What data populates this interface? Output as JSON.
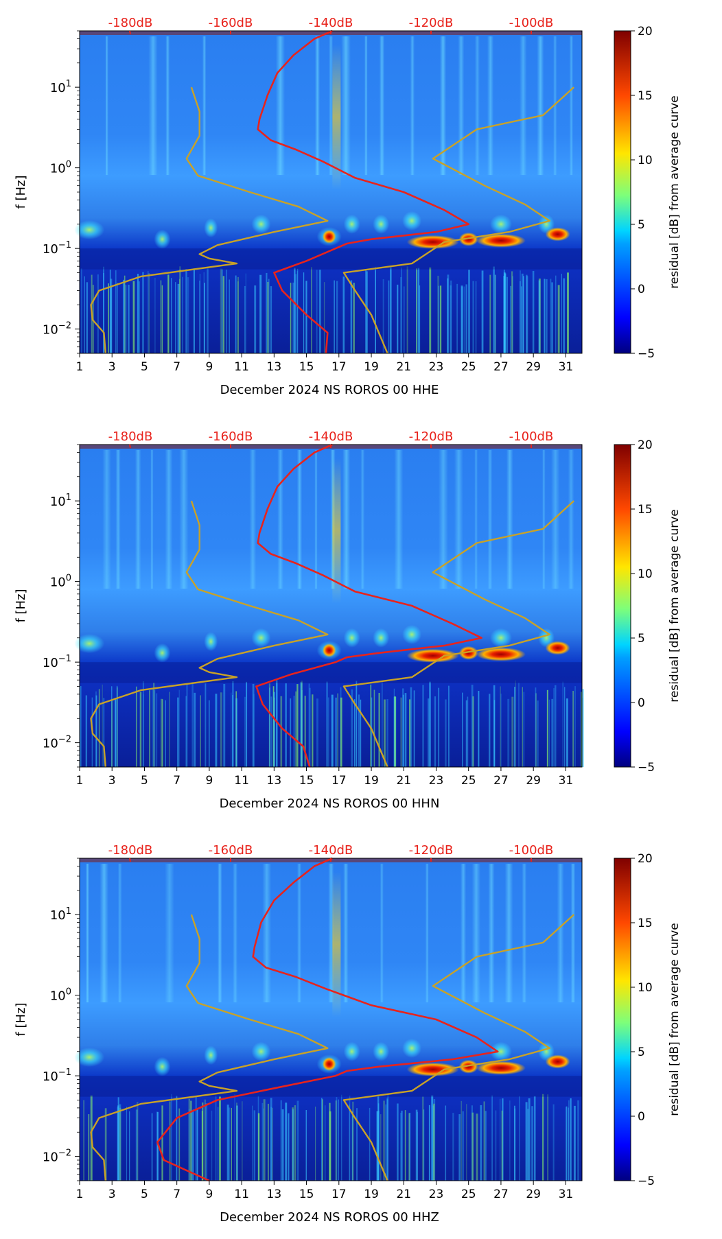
{
  "chart_data": [
    {
      "type": "heatmap",
      "panel": "HHE",
      "xlabel": "December 2024 NS ROROS 00 HHE",
      "ylabel": "f [Hz]",
      "xlim": [
        1,
        32
      ],
      "ylim_log": [
        0.005,
        50
      ],
      "x_ticks": [
        "1",
        "3",
        "5",
        "7",
        "9",
        "11",
        "13",
        "15",
        "17",
        "19",
        "21",
        "23",
        "25",
        "27",
        "29",
        "31"
      ],
      "y_ticks": [
        "10^-2",
        "10^-1",
        "10^0",
        "10^1"
      ],
      "top_axis_labels": [
        "-180dB",
        "-160dB",
        "-140dB",
        "-120dB",
        "-100dB"
      ],
      "colorbar": {
        "label": "residual [dB] from average curve",
        "min": -5,
        "max": 20,
        "ticks": [
          "20",
          "15",
          "10",
          "5",
          "0",
          "−5"
        ]
      },
      "series": [
        {
          "name": "average PSD curve",
          "color": "#e8231c",
          "points": [
            [
              16.6,
              50
            ],
            [
              15.5,
              40
            ],
            [
              14.2,
              25
            ],
            [
              13.2,
              15
            ],
            [
              12.6,
              8
            ],
            [
              12.1,
              4
            ],
            [
              12.0,
              3
            ],
            [
              12.8,
              2.2
            ],
            [
              14.3,
              1.7
            ],
            [
              16.0,
              1.2
            ],
            [
              18.0,
              0.75
            ],
            [
              21.0,
              0.5
            ],
            [
              23.5,
              0.3
            ],
            [
              25.0,
              0.2
            ],
            [
              23.0,
              0.16
            ],
            [
              19.0,
              0.13
            ],
            [
              17.5,
              0.115
            ],
            [
              16.8,
              0.1
            ],
            [
              15.0,
              0.07
            ],
            [
              13.0,
              0.05
            ],
            [
              13.5,
              0.03
            ],
            [
              15.0,
              0.015
            ],
            [
              16.3,
              0.009
            ],
            [
              16.2,
              0.005
            ]
          ]
        },
        {
          "name": "noise model",
          "color": "#c9a227",
          "points": [
            [
              7.9,
              10
            ],
            [
              8.4,
              5
            ],
            [
              8.4,
              2.5
            ],
            [
              7.6,
              1.3
            ],
            [
              8.3,
              0.8
            ],
            [
              11.5,
              0.5
            ],
            [
              14.5,
              0.33
            ],
            [
              16.3,
              0.22
            ],
            [
              13.0,
              0.16
            ],
            [
              9.5,
              0.11
            ],
            [
              8.4,
              0.085
            ],
            [
              9.0,
              0.075
            ],
            [
              10.7,
              0.065
            ],
            [
              4.8,
              0.045
            ],
            [
              2.2,
              0.03
            ],
            [
              1.7,
              0.02
            ],
            [
              1.8,
              0.013
            ],
            [
              2.5,
              0.009
            ],
            [
              2.6,
              0.005
            ]
          ]
        },
        {
          "name": "noise model",
          "color": "#c9a227",
          "points": [
            [
              31.5,
              10
            ],
            [
              29.6,
              4.5
            ],
            [
              25.5,
              3.0
            ],
            [
              22.8,
              1.3
            ],
            [
              26.0,
              0.6
            ],
            [
              28.5,
              0.35
            ],
            [
              30.0,
              0.22
            ],
            [
              27.5,
              0.16
            ],
            [
              23.5,
              0.12
            ],
            [
              21.5,
              0.065
            ],
            [
              17.3,
              0.05
            ],
            [
              18.0,
              0.03
            ],
            [
              19.0,
              0.015
            ],
            [
              20.0,
              0.005
            ]
          ]
        }
      ]
    },
    {
      "type": "heatmap",
      "panel": "HHN",
      "xlabel": "December 2024 NS ROROS 00 HHN",
      "ylabel": "f [Hz]",
      "xlim": [
        1,
        32
      ],
      "ylim_log": [
        0.005,
        50
      ],
      "x_ticks": [
        "1",
        "3",
        "5",
        "7",
        "9",
        "11",
        "13",
        "15",
        "17",
        "19",
        "21",
        "23",
        "25",
        "27",
        "29",
        "31"
      ],
      "y_ticks": [
        "10^-2",
        "10^-1",
        "10^0",
        "10^1"
      ],
      "top_axis_labels": [
        "-180dB",
        "-160dB",
        "-140dB",
        "-120dB",
        "-100dB"
      ],
      "colorbar": {
        "label": "residual [dB] from average curve",
        "min": -5,
        "max": 20,
        "ticks": [
          "20",
          "15",
          "10",
          "5",
          "0",
          "−5"
        ]
      },
      "series": [
        {
          "name": "average PSD curve",
          "color": "#e8231c",
          "points": [
            [
              16.6,
              50
            ],
            [
              15.5,
              40
            ],
            [
              14.2,
              25
            ],
            [
              13.2,
              15
            ],
            [
              12.6,
              8
            ],
            [
              12.1,
              4
            ],
            [
              12.0,
              3
            ],
            [
              12.8,
              2.2
            ],
            [
              14.3,
              1.7
            ],
            [
              16.0,
              1.2
            ],
            [
              18.0,
              0.75
            ],
            [
              21.5,
              0.5
            ],
            [
              24.0,
              0.3
            ],
            [
              25.8,
              0.2
            ],
            [
              23.5,
              0.16
            ],
            [
              19.5,
              0.13
            ],
            [
              17.5,
              0.115
            ],
            [
              16.8,
              0.1
            ],
            [
              14.0,
              0.07
            ],
            [
              11.9,
              0.05
            ],
            [
              12.3,
              0.03
            ],
            [
              13.5,
              0.015
            ],
            [
              14.8,
              0.009
            ],
            [
              15.2,
              0.005
            ]
          ]
        },
        {
          "name": "noise model",
          "color": "#c9a227",
          "points": [
            [
              7.9,
              10
            ],
            [
              8.4,
              5
            ],
            [
              8.4,
              2.5
            ],
            [
              7.6,
              1.3
            ],
            [
              8.3,
              0.8
            ],
            [
              11.5,
              0.5
            ],
            [
              14.5,
              0.33
            ],
            [
              16.3,
              0.22
            ],
            [
              13.0,
              0.16
            ],
            [
              9.5,
              0.11
            ],
            [
              8.4,
              0.085
            ],
            [
              9.0,
              0.075
            ],
            [
              10.7,
              0.065
            ],
            [
              4.8,
              0.045
            ],
            [
              2.2,
              0.03
            ],
            [
              1.7,
              0.02
            ],
            [
              1.8,
              0.013
            ],
            [
              2.5,
              0.009
            ],
            [
              2.6,
              0.005
            ]
          ]
        },
        {
          "name": "noise model",
          "color": "#c9a227",
          "points": [
            [
              31.5,
              10
            ],
            [
              29.6,
              4.5
            ],
            [
              25.5,
              3.0
            ],
            [
              22.8,
              1.3
            ],
            [
              26.0,
              0.6
            ],
            [
              28.5,
              0.35
            ],
            [
              30.0,
              0.22
            ],
            [
              27.5,
              0.16
            ],
            [
              23.5,
              0.12
            ],
            [
              21.5,
              0.065
            ],
            [
              17.3,
              0.05
            ],
            [
              18.0,
              0.03
            ],
            [
              19.0,
              0.015
            ],
            [
              20.0,
              0.005
            ]
          ]
        }
      ]
    },
    {
      "type": "heatmap",
      "panel": "HHZ",
      "xlabel": "December 2024 NS ROROS 00 HHZ",
      "ylabel": "f [Hz]",
      "xlim": [
        1,
        32
      ],
      "ylim_log": [
        0.005,
        50
      ],
      "x_ticks": [
        "1",
        "3",
        "5",
        "7",
        "9",
        "11",
        "13",
        "15",
        "17",
        "19",
        "21",
        "23",
        "25",
        "27",
        "29",
        "31"
      ],
      "y_ticks": [
        "10^-2",
        "10^-1",
        "10^0",
        "10^1"
      ],
      "top_axis_labels": [
        "-180dB",
        "-160dB",
        "-140dB",
        "-120dB",
        "-100dB"
      ],
      "colorbar": {
        "label": "residual [dB] from average curve",
        "min": -5,
        "max": 20,
        "ticks": [
          "20",
          "15",
          "10",
          "5",
          "0",
          "−5"
        ]
      },
      "series": [
        {
          "name": "average PSD curve",
          "color": "#e8231c",
          "points": [
            [
              16.6,
              50
            ],
            [
              15.5,
              40
            ],
            [
              14.2,
              25
            ],
            [
              13.0,
              15
            ],
            [
              12.2,
              8
            ],
            [
              11.8,
              4
            ],
            [
              11.7,
              3
            ],
            [
              12.5,
              2.2
            ],
            [
              14.3,
              1.7
            ],
            [
              16.2,
              1.2
            ],
            [
              19.0,
              0.75
            ],
            [
              23.0,
              0.5
            ],
            [
              25.5,
              0.3
            ],
            [
              26.8,
              0.2
            ],
            [
              24.0,
              0.16
            ],
            [
              19.5,
              0.13
            ],
            [
              17.5,
              0.115
            ],
            [
              16.8,
              0.1
            ],
            [
              13.0,
              0.07
            ],
            [
              9.5,
              0.05
            ],
            [
              7.0,
              0.03
            ],
            [
              5.8,
              0.015
            ],
            [
              6.2,
              0.009
            ],
            [
              9.0,
              0.005
            ]
          ]
        },
        {
          "name": "noise model",
          "color": "#c9a227",
          "points": [
            [
              7.9,
              10
            ],
            [
              8.4,
              5
            ],
            [
              8.4,
              2.5
            ],
            [
              7.6,
              1.3
            ],
            [
              8.3,
              0.8
            ],
            [
              11.5,
              0.5
            ],
            [
              14.5,
              0.33
            ],
            [
              16.3,
              0.22
            ],
            [
              13.0,
              0.16
            ],
            [
              9.5,
              0.11
            ],
            [
              8.4,
              0.085
            ],
            [
              9.0,
              0.075
            ],
            [
              10.7,
              0.065
            ],
            [
              4.8,
              0.045
            ],
            [
              2.2,
              0.03
            ],
            [
              1.7,
              0.02
            ],
            [
              1.8,
              0.013
            ],
            [
              2.5,
              0.009
            ],
            [
              2.6,
              0.005
            ]
          ]
        },
        {
          "name": "noise model",
          "color": "#c9a227",
          "points": [
            [
              31.5,
              10
            ],
            [
              29.6,
              4.5
            ],
            [
              25.5,
              3.0
            ],
            [
              22.8,
              1.3
            ],
            [
              26.0,
              0.6
            ],
            [
              28.5,
              0.35
            ],
            [
              30.0,
              0.22
            ],
            [
              27.5,
              0.16
            ],
            [
              23.5,
              0.12
            ],
            [
              21.5,
              0.065
            ],
            [
              17.3,
              0.05
            ],
            [
              18.0,
              0.03
            ],
            [
              19.0,
              0.015
            ],
            [
              20.0,
              0.005
            ]
          ]
        }
      ]
    }
  ]
}
